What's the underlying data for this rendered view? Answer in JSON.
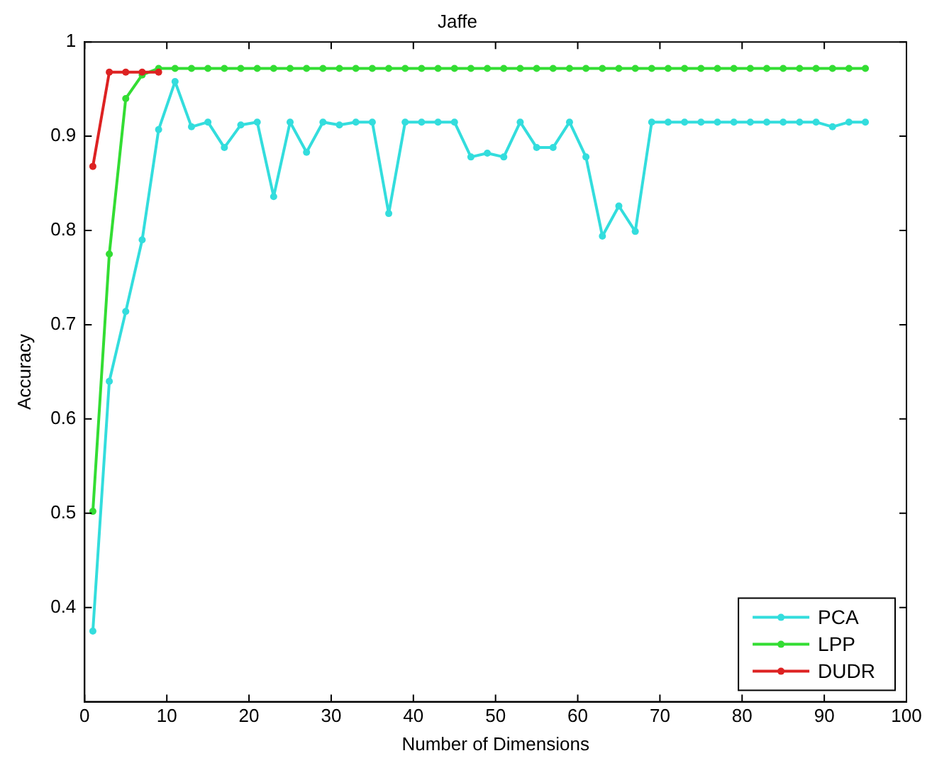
{
  "chart_data": {
    "type": "line",
    "title": "Jaffe",
    "xlabel": "Number of Dimensions",
    "ylabel": "Accuracy",
    "x": [
      1,
      3,
      5,
      7,
      9,
      11,
      13,
      15,
      17,
      19,
      21,
      23,
      25,
      27,
      29,
      31,
      33,
      35,
      37,
      39,
      41,
      43,
      45,
      47,
      49,
      51,
      53,
      55,
      57,
      59,
      61,
      63,
      65,
      67,
      69,
      71,
      73,
      75,
      77,
      79,
      81,
      83,
      85,
      87,
      89,
      91,
      93,
      95
    ],
    "series": [
      {
        "name": "PCA",
        "color": "#33dddd",
        "values": [
          0.375,
          0.64,
          0.714,
          0.79,
          0.907,
          0.958,
          0.91,
          0.915,
          0.888,
          0.912,
          0.915,
          0.836,
          0.915,
          0.883,
          0.915,
          0.912,
          0.915,
          0.915,
          0.818,
          0.915,
          0.915,
          0.915,
          0.915,
          0.878,
          0.882,
          0.878,
          0.915,
          0.888,
          0.888,
          0.915,
          0.878,
          0.794,
          0.826,
          0.799,
          0.915,
          0.915,
          0.915,
          0.915,
          0.915,
          0.915,
          0.915,
          0.915,
          0.915,
          0.915,
          0.915,
          0.91,
          0.915,
          0.915
        ]
      },
      {
        "name": "LPP",
        "color": "#33dd33",
        "values": [
          0.502,
          0.775,
          0.94,
          0.965,
          0.972,
          0.972,
          0.972,
          0.972,
          0.972,
          0.972,
          0.972,
          0.972,
          0.972,
          0.972,
          0.972,
          0.972,
          0.972,
          0.972,
          0.972,
          0.972,
          0.972,
          0.972,
          0.972,
          0.972,
          0.972,
          0.972,
          0.972,
          0.972,
          0.972,
          0.972,
          0.972,
          0.972,
          0.972,
          0.972,
          0.972,
          0.972,
          0.972,
          0.972,
          0.972,
          0.972,
          0.972,
          0.972,
          0.972,
          0.972,
          0.972,
          0.972,
          0.972,
          0.972
        ]
      },
      {
        "name": "DUDR",
        "color": "#dd2222",
        "x": [
          1,
          3,
          5,
          7,
          9
        ],
        "values": [
          0.868,
          0.968,
          0.968,
          0.968,
          0.968
        ]
      }
    ],
    "xlim": [
      0,
      100
    ],
    "xticks": [
      0,
      10,
      20,
      30,
      40,
      50,
      60,
      70,
      80,
      90,
      100
    ],
    "ylim": [
      0.3,
      1
    ],
    "yticks": [
      0.4,
      0.5,
      0.6,
      0.7,
      0.8,
      0.9,
      1
    ],
    "legend": "bottom right",
    "marker": "circle",
    "line_style": "solid"
  }
}
